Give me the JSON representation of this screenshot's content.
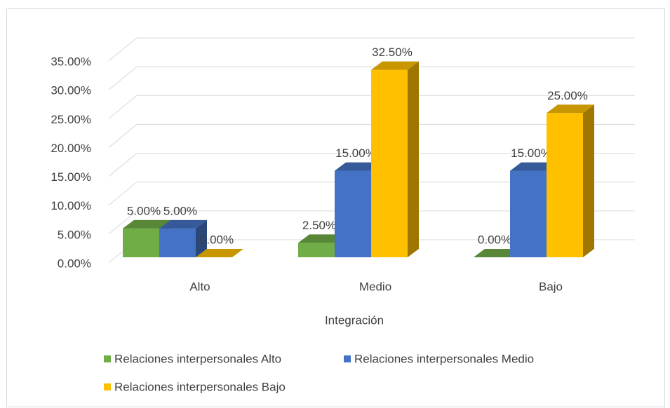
{
  "chart_data": {
    "type": "bar3d",
    "x_label": "Integración",
    "categories": [
      "Alto",
      "Medio",
      "Bajo"
    ],
    "series": [
      {
        "name": "Relaciones interpersonales Alto",
        "color": "#70ad47",
        "values": [
          5,
          2.5,
          0
        ],
        "value_labels": [
          "5.00%",
          "2.50%",
          "0.00%"
        ]
      },
      {
        "name": "Relaciones interpersonales Medio",
        "color": "#4472c4",
        "values": [
          5,
          15,
          15
        ],
        "value_labels": [
          "5.00%",
          "15.00%",
          "15.00%"
        ]
      },
      {
        "name": "Relaciones interpersonales Bajo",
        "color": "#ffc000",
        "values": [
          0,
          32.5,
          25
        ],
        "value_labels": [
          "0.00%",
          "32.50%",
          "25.00%"
        ]
      }
    ],
    "ylim": [
      0,
      35
    ],
    "yticks": [
      {
        "value": 0,
        "label": "0.00%"
      },
      {
        "value": 5,
        "label": "5.00%"
      },
      {
        "value": 10,
        "label": "10.00%"
      },
      {
        "value": 15,
        "label": "15.00%"
      },
      {
        "value": 20,
        "label": "20.00%"
      },
      {
        "value": 25,
        "label": "25.00%"
      },
      {
        "value": 30,
        "label": "30.00%"
      },
      {
        "value": 35,
        "label": "35.00%"
      }
    ],
    "grid": true,
    "legend": "bottom"
  }
}
